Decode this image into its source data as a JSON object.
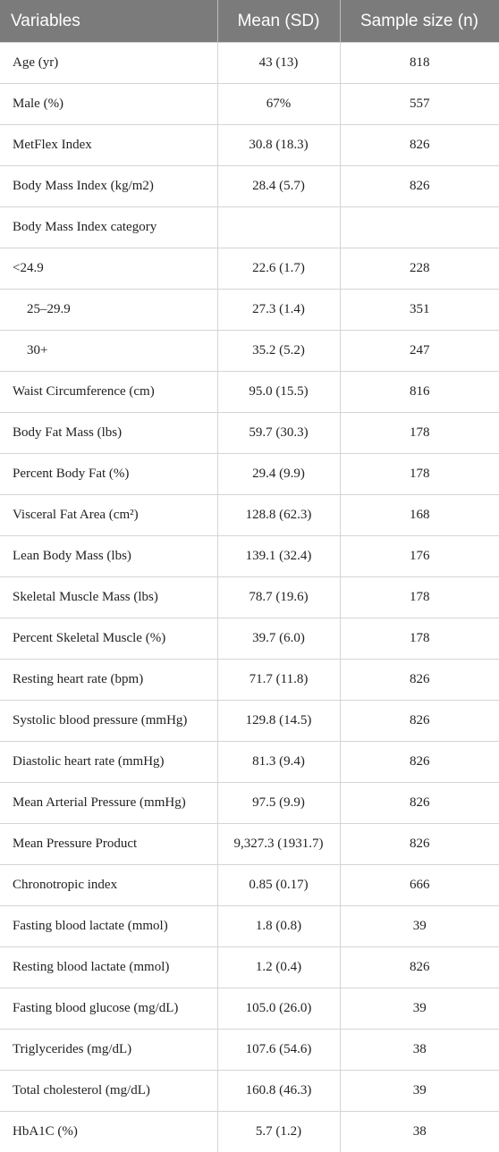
{
  "table": {
    "header": [
      "Variables",
      "Mean (SD)",
      "Sample size (n)"
    ],
    "rows": [
      [
        "Age (yr)",
        "43 (13)",
        818
      ],
      [
        "Male (%)",
        "67%",
        557
      ],
      [
        "MetFlex Index",
        "30.8 (18.3)",
        826
      ],
      [
        "Body Mass Index (kg/m2)",
        "28.4 (5.7)",
        826
      ],
      [
        "Body Mass Index category",
        null,
        null
      ],
      [
        "<24.9",
        "22.6 (1.7)",
        228
      ],
      [
        "25–29.9",
        "27.3 (1.4)",
        351
      ],
      [
        "30+",
        "35.2 (5.2)",
        247
      ],
      [
        "Waist Circumference (cm)",
        "95.0 (15.5)",
        816
      ],
      [
        "Body Fat Mass (lbs)",
        "59.7 (30.3)",
        178
      ],
      [
        "Percent Body Fat (%)",
        "29.4 (9.9)",
        178
      ],
      [
        "Visceral Fat Area (cm²)",
        "128.8 (62.3)",
        168
      ],
      [
        "Lean Body Mass (lbs)",
        "139.1 (32.4)",
        176
      ],
      [
        "Skeletal Muscle Mass (lbs)",
        "78.7 (19.6)",
        178
      ],
      [
        "Percent Skeletal Muscle (%)",
        "39.7 (6.0)",
        178
      ],
      [
        "Resting heart rate (bpm)",
        "71.7 (11.8)",
        826
      ],
      [
        "Systolic blood pressure (mmHg)",
        "129.8 (14.5)",
        826
      ],
      [
        "Diastolic heart rate (mmHg)",
        "81.3 (9.4)",
        826
      ],
      [
        "Mean Arterial Pressure (mmHg)",
        "97.5 (9.9)",
        826
      ],
      [
        "Mean Pressure Product",
        "9,327.3 (1931.7)",
        826
      ],
      [
        "Chronotropic index",
        "0.85 (0.17)",
        666
      ],
      [
        "Fasting blood lactate (mmol)",
        "1.8 (0.8)",
        39
      ],
      [
        "Resting blood lactate (mmol)",
        "1.2 (0.4)",
        826
      ],
      [
        "Fasting blood glucose (mg/dL)",
        "105.0 (26.0)",
        39
      ],
      [
        "Triglycerides (mg/dL)",
        "107.6 (54.6)",
        38
      ],
      [
        "Total cholesterol (mg/dL)",
        "160.8 (46.3)",
        39
      ],
      [
        "HbA1C (%)",
        "5.7 (1.2)",
        38
      ]
    ]
  }
}
